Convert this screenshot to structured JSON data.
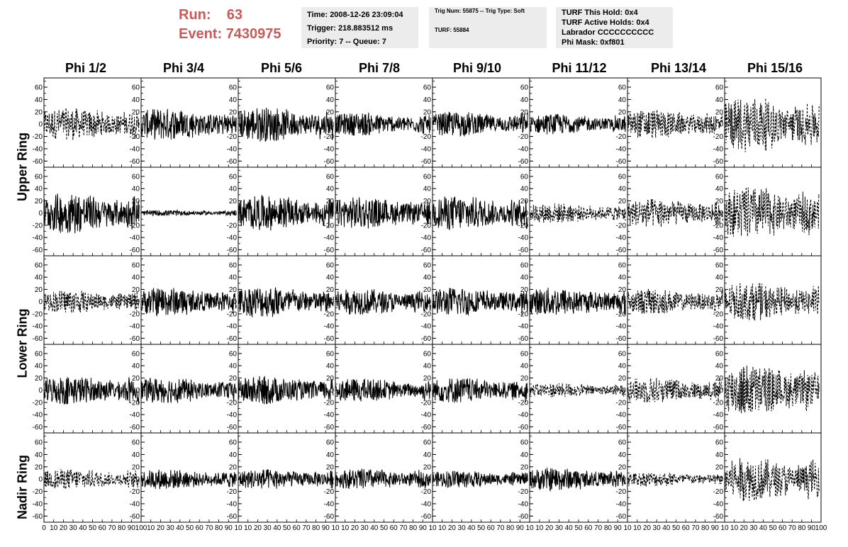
{
  "header": {
    "run_label": "Run:",
    "run_value": "63",
    "event_label": "Event:",
    "event_value": "7430975"
  },
  "info_time": {
    "time": "Time: 2008-12-26 23:09:04",
    "trigger": "Trigger: 218.883512 ms",
    "priority": "Priority: 7 -- Queue: 7"
  },
  "info_trig": {
    "trig": "Trig Num: 55875 -- Trig Type: Soft",
    "turf": "TURF: 55884"
  },
  "info_turf": {
    "this_hold": "TURF This Hold: 0x4",
    "active_holds": "TURF Active Holds: 0x4",
    "labrador": "Labrador CCCCCCCCCC",
    "phi_mask": "Phi Mask: 0xf801"
  },
  "columns": [
    "Phi 1/2",
    "Phi 3/4",
    "Phi 5/6",
    "Phi 7/8",
    "Phi 9/10",
    "Phi 11/12",
    "Phi 13/14",
    "Phi 15/16"
  ],
  "ring_labels": [
    "Upper Ring",
    "Lower Ring",
    "Nadir Ring"
  ],
  "chart_data": {
    "type": "line",
    "rows": 5,
    "cols": 8,
    "xlim": [
      0,
      100
    ],
    "ylim": [
      -70,
      75
    ],
    "yticks": [
      -60,
      -40,
      -20,
      0,
      20,
      40,
      60
    ],
    "xtick_labels_first": [
      "0",
      "10",
      "20",
      "30",
      "40",
      "50",
      "60",
      "70",
      "80",
      "90",
      "100"
    ],
    "xtick_labels": [
      "10",
      "20",
      "30",
      "40",
      "50",
      "60",
      "70",
      "80",
      "90",
      "10"
    ],
    "xtick_labels_last": [
      "10",
      "20",
      "30",
      "40",
      "50",
      "60",
      "70",
      "80",
      "90",
      "100"
    ],
    "panel_amplitude": [
      [
        22,
        22,
        24,
        16,
        17,
        14,
        20,
        38
      ],
      [
        28,
        4,
        24,
        22,
        24,
        14,
        20,
        36
      ],
      [
        16,
        20,
        22,
        18,
        20,
        20,
        18,
        26
      ],
      [
        20,
        18,
        20,
        16,
        18,
        10,
        18,
        36
      ],
      [
        14,
        14,
        14,
        14,
        12,
        16,
        10,
        30
      ]
    ],
    "panel_dashed": [
      [
        true,
        false,
        false,
        false,
        false,
        false,
        true,
        true
      ],
      [
        false,
        false,
        false,
        false,
        false,
        true,
        true,
        true
      ],
      [
        true,
        false,
        false,
        false,
        false,
        false,
        true,
        true
      ],
      [
        false,
        false,
        false,
        false,
        false,
        true,
        true,
        true
      ],
      [
        true,
        false,
        false,
        false,
        false,
        false,
        true,
        true
      ]
    ]
  }
}
